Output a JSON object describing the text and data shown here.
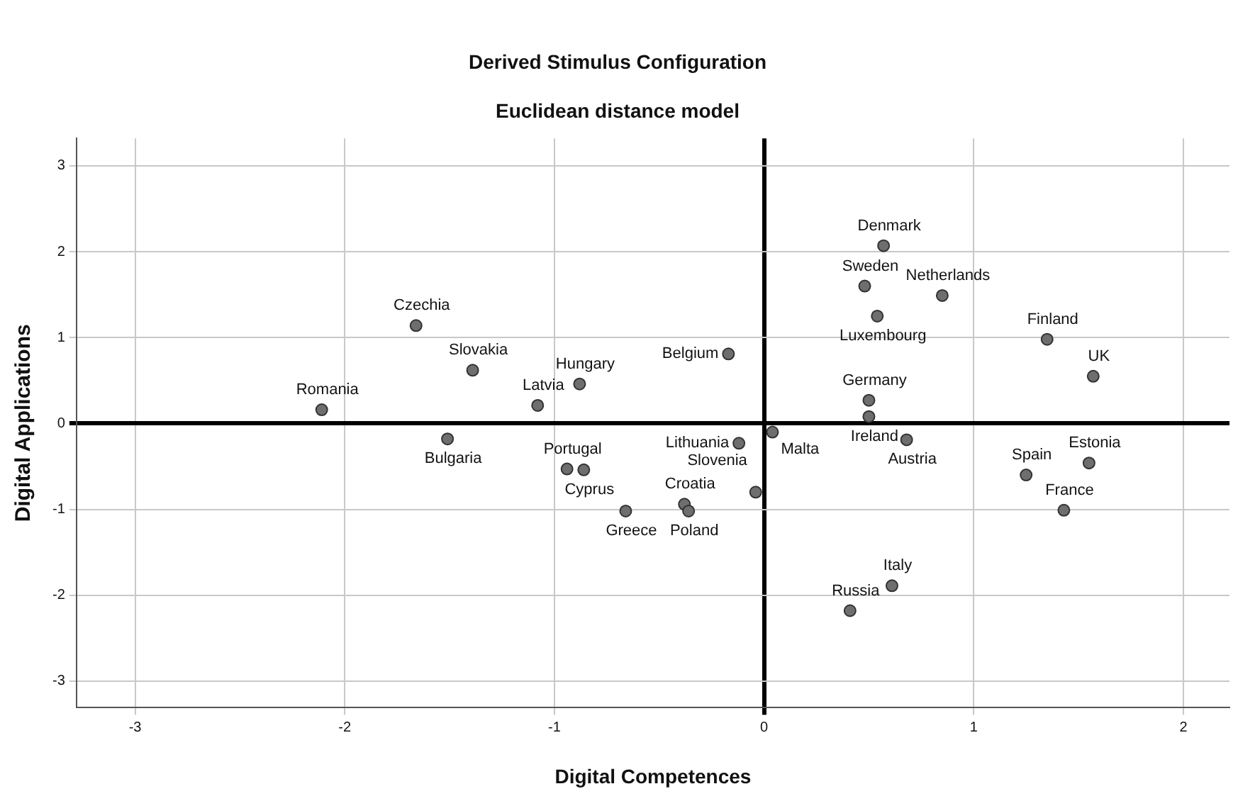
{
  "chart_data": {
    "type": "scatter",
    "title": "Derived Stimulus Configuration",
    "subtitle": "Euclidean distance model",
    "xlabel": "Digital Competences",
    "ylabel": "Digital Applications",
    "series": [
      {
        "color": "#6e6e6e",
        "x": [
          -1.66,
          -1.39,
          -0.88,
          -2.11,
          -1.08,
          -1.51,
          -0.94,
          -0.86,
          -0.66,
          -0.38,
          -0.36,
          -0.17,
          -0.12,
          0.04,
          -0.04,
          0.57,
          0.48,
          0.85,
          0.54,
          1.35,
          1.57,
          0.5,
          0.5,
          0.68,
          1.25,
          1.55,
          1.43,
          0.61,
          0.41
        ],
        "values": [
          1.14,
          0.62,
          0.46,
          0.16,
          0.21,
          -0.18,
          -0.53,
          -0.54,
          -1.02,
          -0.94,
          -1.02,
          0.81,
          -0.23,
          -0.1,
          -0.8,
          2.07,
          1.6,
          1.49,
          1.25,
          0.98,
          0.55,
          0.27,
          0.08,
          -0.19,
          -0.6,
          -0.46,
          -1.01,
          -1.89,
          -2.18
        ]
      }
    ],
    "annotations": [
      {
        "text": "Czechia",
        "x": -1.66,
        "y": 1.14
      },
      {
        "text": "Slovakia",
        "x": -1.39,
        "y": 0.62
      },
      {
        "text": "Hungary",
        "x": -0.88,
        "y": 0.46
      },
      {
        "text": "Romania",
        "x": -2.11,
        "y": 0.16
      },
      {
        "text": "Latvia",
        "x": -1.08,
        "y": 0.21
      },
      {
        "text": "Bulgaria",
        "x": -1.51,
        "y": -0.18
      },
      {
        "text": "Portugal",
        "x": -0.94,
        "y": -0.53
      },
      {
        "text": "Cyprus",
        "x": -0.86,
        "y": -0.54
      },
      {
        "text": "Greece",
        "x": -0.66,
        "y": -1.02
      },
      {
        "text": "Croatia",
        "x": -0.38,
        "y": -0.94
      },
      {
        "text": "Poland",
        "x": -0.36,
        "y": -1.02
      },
      {
        "text": "Belgium",
        "x": -0.17,
        "y": 0.81
      },
      {
        "text": "Lithuania",
        "x": -0.12,
        "y": -0.23
      },
      {
        "text": "Malta",
        "x": 0.04,
        "y": -0.1
      },
      {
        "text": "Slovenia",
        "x": -0.04,
        "y": -0.8
      },
      {
        "text": "Denmark",
        "x": 0.57,
        "y": 2.07
      },
      {
        "text": "Sweden",
        "x": 0.48,
        "y": 1.6
      },
      {
        "text": "Netherlands",
        "x": 0.85,
        "y": 1.49
      },
      {
        "text": "Luxembourg",
        "x": 0.54,
        "y": 1.25
      },
      {
        "text": "Finland",
        "x": 1.35,
        "y": 0.98
      },
      {
        "text": "UK",
        "x": 1.57,
        "y": 0.55
      },
      {
        "text": "Germany",
        "x": 0.5,
        "y": 0.27
      },
      {
        "text": "Ireland",
        "x": 0.5,
        "y": 0.08
      },
      {
        "text": "Austria",
        "x": 0.68,
        "y": -0.19
      },
      {
        "text": "Spain",
        "x": 1.25,
        "y": -0.6
      },
      {
        "text": "Estonia",
        "x": 1.55,
        "y": -0.46
      },
      {
        "text": "France",
        "x": 1.43,
        "y": -1.01
      },
      {
        "text": "Italy",
        "x": 0.61,
        "y": -1.89
      },
      {
        "text": "Russia",
        "x": 0.41,
        "y": -2.18
      }
    ],
    "xlim": [
      -3.28,
      2.22
    ],
    "xticks": [
      -3,
      -2,
      -1,
      0,
      1,
      2
    ],
    "ylim": [
      -3.31,
      3.32
    ],
    "yticks": [
      -3,
      -2,
      -1,
      0,
      1,
      2,
      3
    ],
    "grid": true,
    "legend": false,
    "marker": "circle"
  }
}
